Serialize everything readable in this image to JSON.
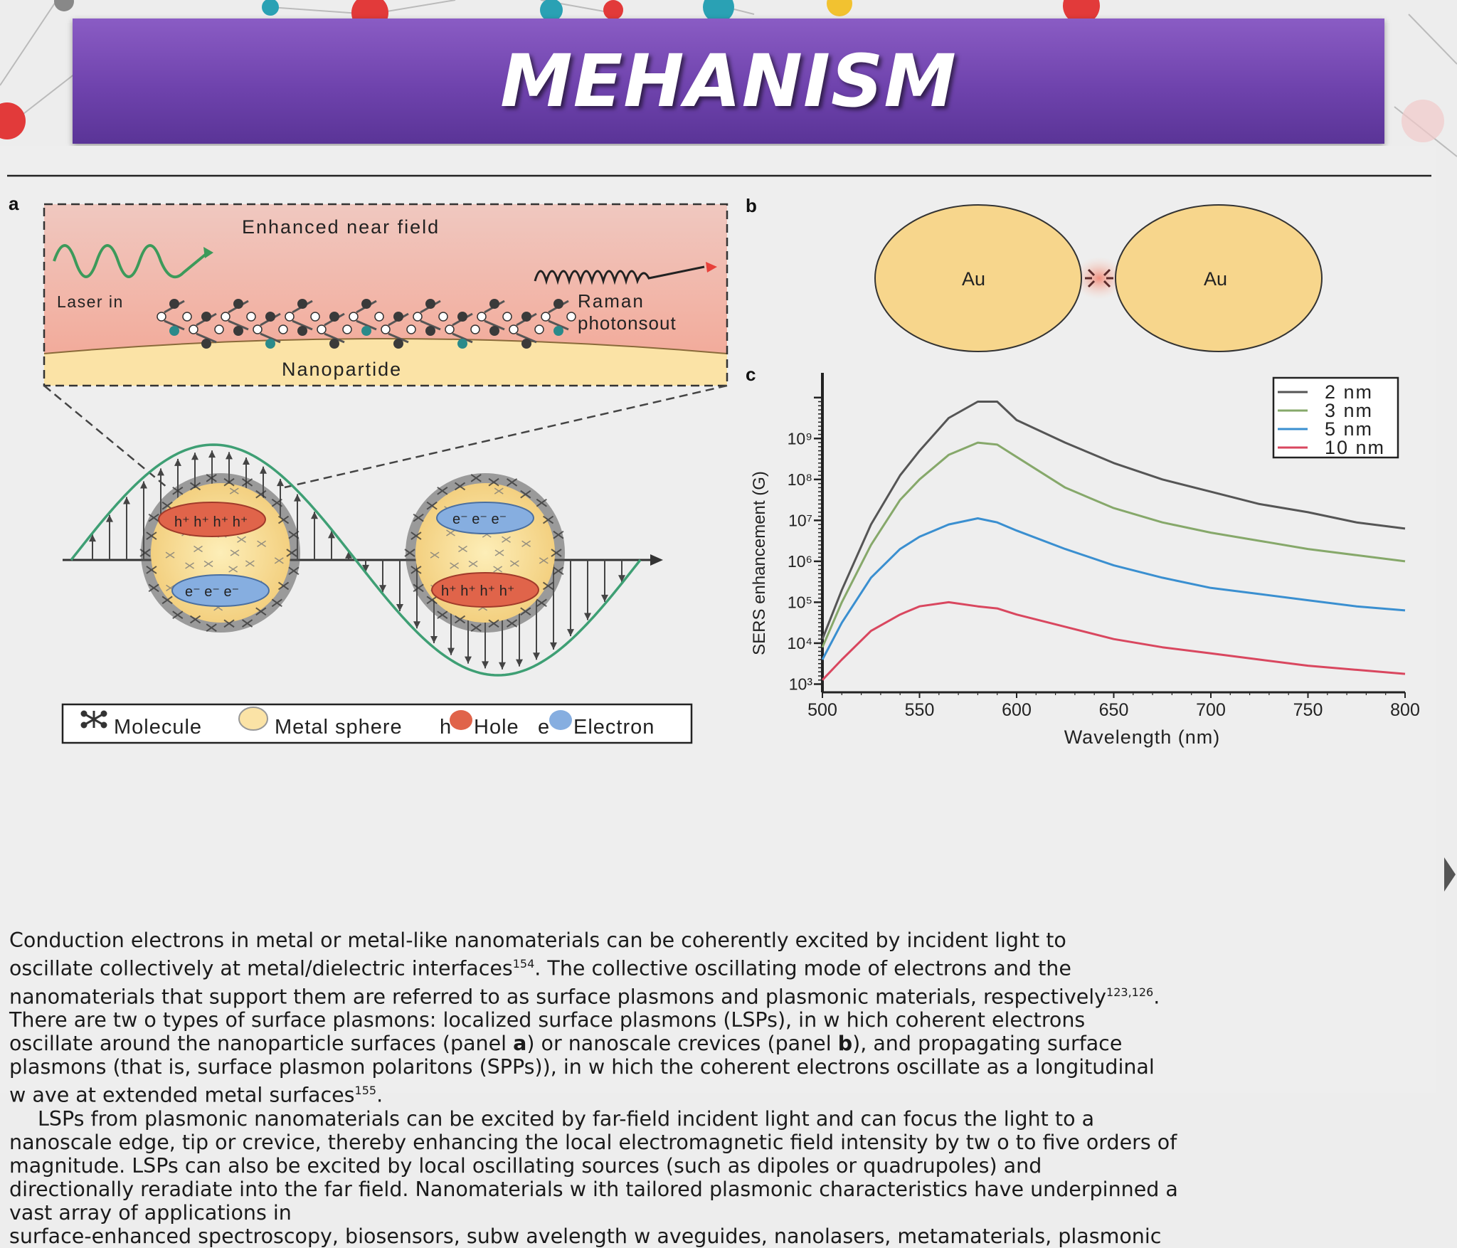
{
  "slide": {
    "title": "MEHANISM"
  },
  "panel_a": {
    "label": "a",
    "enhanced_near_field": "Enhanced near field",
    "laser_in": "Laser   in",
    "raman_line1": "Raman",
    "raman_line2": "photonsout",
    "nanoparticle": "Nanopartide",
    "hole_symbol": "h⁺",
    "electron_symbol": "e⁻"
  },
  "legend_a": {
    "molecule": "Molecule",
    "metal_sphere": "Metal sphere",
    "hole_prefix": "h",
    "hole": "Hole",
    "electron_prefix": "e",
    "electron": "Electron"
  },
  "panel_b": {
    "label": "b",
    "left_sphere": "Au",
    "right_sphere": "Au"
  },
  "chart_data": {
    "type": "line",
    "panel_label": "c",
    "title": "",
    "xlabel": "Wavelength (nm)",
    "ylabel": "SERS enhancement (G)",
    "x_ticks": [
      "500",
      "550",
      "600",
      "650",
      "700",
      "750",
      "800"
    ],
    "y_ticks": [
      "10³",
      "10⁴",
      "10⁵",
      "10⁶",
      "10⁷",
      "10⁸",
      "10⁹"
    ],
    "x": [
      500,
      510,
      525,
      540,
      550,
      565,
      580,
      590,
      600,
      625,
      650,
      675,
      700,
      725,
      750,
      775,
      800
    ],
    "ylog_range": [
      2.8,
      10.5
    ],
    "log_scale": true,
    "legend_position": "top-right",
    "series": [
      {
        "name": "2 nm",
        "color": "#555555",
        "log_values": [
          4.1,
          5.3,
          6.9,
          8.1,
          8.7,
          9.5,
          9.9,
          9.9,
          9.45,
          8.9,
          8.4,
          8.0,
          7.7,
          7.4,
          7.2,
          6.95,
          6.8
        ]
      },
      {
        "name": "3 nm",
        "color": "#86a86a",
        "log_values": [
          3.9,
          5.0,
          6.4,
          7.5,
          8.0,
          8.6,
          8.9,
          8.85,
          8.55,
          7.8,
          7.3,
          6.95,
          6.7,
          6.5,
          6.3,
          6.15,
          6.0
        ]
      },
      {
        "name": "5 nm",
        "color": "#3a8fd0",
        "log_values": [
          3.6,
          4.5,
          5.6,
          6.3,
          6.6,
          6.9,
          7.05,
          6.95,
          6.75,
          6.3,
          5.9,
          5.6,
          5.35,
          5.2,
          5.05,
          4.9,
          4.8
        ]
      },
      {
        "name": "10 nm",
        "color": "#d9475f",
        "log_values": [
          3.1,
          3.6,
          4.3,
          4.7,
          4.9,
          5.0,
          4.9,
          4.85,
          4.7,
          4.4,
          4.1,
          3.9,
          3.75,
          3.6,
          3.45,
          3.35,
          3.25
        ]
      }
    ]
  },
  "paragraphs": {
    "p1": [
      "Conduction  electrons in metal or metal-like  nanomaterials  can be coherently excited by incident light to",
      "oscillate collectively at metal/dielectric interfaces",
      ". The collective oscillating mode of electrons and the",
      "nanomaterials  that support them are referred to as surface plasmons and plasmonic materials, respectively",
      "There are tw o types of surface plasmons: localized surface plasmons (LSPs), in  w hich coherent electrons",
      "oscillate around the  nanoparticle surfaces (panel ",
      ") or nanoscale crevices (panel ",
      "), and propagating surface",
      "plasmons (that is, surface plasmon polaritons (SPPs)), in w hich the coherent electrons oscillate as a longitudinal",
      "w ave at extended metal surfaces"
    ],
    "p1_refs": [
      "154",
      "123,126",
      "155"
    ],
    "p1_panels": [
      "a",
      "b"
    ],
    "p2": [
      "LSPs from plasmonic nanomaterials can be excited by far-field incident light and can focus the light to a",
      "nanoscale edge, tip or crevice, thereby enhancing the local electromagnetic field intensity by tw o to five orders of",
      "magnitude.  LSPs  can also be excited by local oscillating sources (such as dipoles or quadrupoles) and",
      "directionally reradiate into the far field. Nanomaterials w ith tailored plasmonic characteristics have underpinned a",
      "vast array of applications in",
      "surface-enhanced spectroscopy, biosensors, subw avelength w aveguides, nanolasers, metamaterials, plasmonic"
    ]
  },
  "colors": {
    "title_bar": "#6f43ad",
    "gold": "#f7d68c",
    "wave_green": "#4aa37a",
    "hole_red": "#e0644a",
    "electron_blue": "#7fa8d8"
  }
}
